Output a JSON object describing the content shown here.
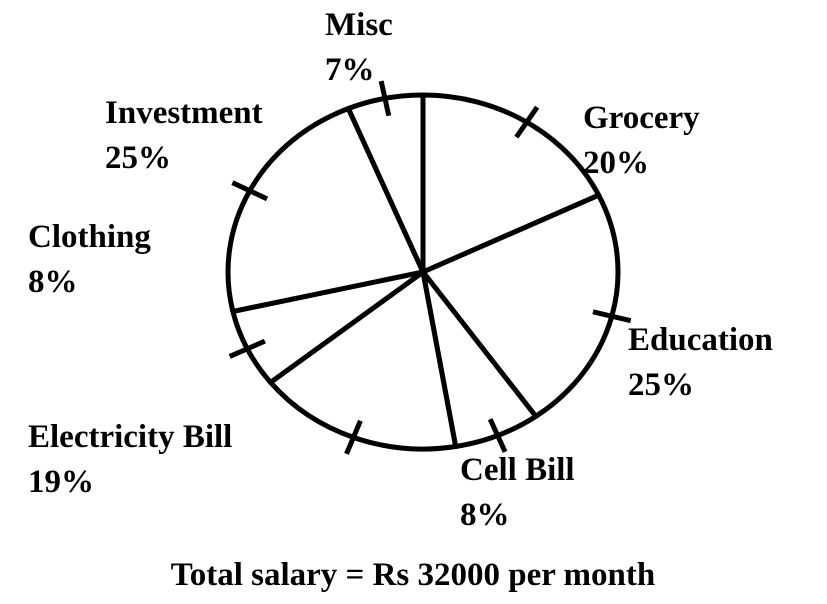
{
  "chart_data": {
    "type": "pie",
    "title": "Total salary = Rs 32000 per month",
    "categories": [
      "Grocery",
      "Education",
      "Cell Bill",
      "Electricity Bill",
      "Clothing",
      "Investment",
      "Misc"
    ],
    "values": [
      20,
      25,
      8,
      19,
      8,
      25,
      7
    ],
    "value_labels": [
      "20%",
      "25%",
      "8%",
      "19%",
      "8%",
      "25%",
      "7%"
    ],
    "color": "#ffffff"
  }
}
